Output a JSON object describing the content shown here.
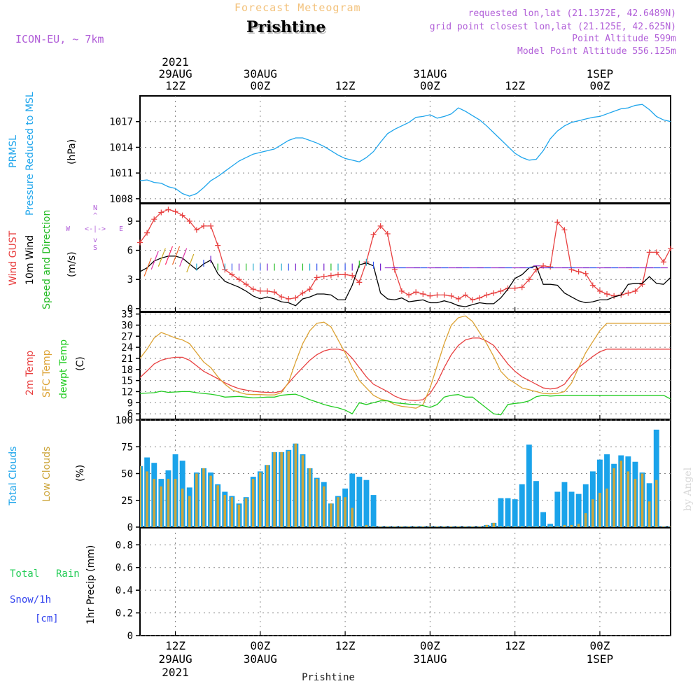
{
  "header": {
    "model": "ICON-EU, ~ 7km",
    "product": "Forecast Meteogram",
    "station": "Prishtine",
    "requested": "requested lon,lat (21.1372E, 42.6489N)",
    "grid_point": "grid point closest lon,lat (21.125E, 42.625N)",
    "point_alt": "Point Altitude 599m",
    "model_alt": "Model Point Altitude 556.125m",
    "credit": "by Angel",
    "footer_station": "Prishtine"
  },
  "colors": {
    "pressure": "#1ea5ec",
    "gust": "#e84141",
    "wind": "#000000",
    "wind_dir": "#22bb22",
    "temp": "#e84141",
    "sfc_temp": "#dca233",
    "dewpt": "#22cc22",
    "total_clouds": "#1aa3ea",
    "low_clouds": "#cda63b",
    "rain": "#22cc55",
    "snow": "#3344ee",
    "label_purple": "#b15fd8",
    "title_orange": "#f3c27c"
  },
  "top_axis": [
    {
      "t": 0,
      "lines": [
        "2021",
        "29AUG",
        "12Z"
      ]
    },
    {
      "t": 12,
      "lines": [
        "30AUG",
        "00Z"
      ]
    },
    {
      "t": 24,
      "lines": [
        "12Z"
      ]
    },
    {
      "t": 36,
      "lines": [
        "31AUG",
        "00Z"
      ]
    },
    {
      "t": 48,
      "lines": [
        "12Z"
      ]
    },
    {
      "t": 60,
      "lines": [
        "1SEP",
        "00Z"
      ]
    }
  ],
  "bottom_axis": [
    {
      "t": 0,
      "lines": [
        "12Z",
        "29AUG",
        "2021"
      ]
    },
    {
      "t": 12,
      "lines": [
        "00Z",
        "30AUG"
      ]
    },
    {
      "t": 24,
      "lines": [
        "12Z"
      ]
    },
    {
      "t": 36,
      "lines": [
        "00Z",
        "31AUG"
      ]
    },
    {
      "t": 48,
      "lines": [
        "12Z"
      ]
    },
    {
      "t": 60,
      "lines": [
        "00Z",
        "1SEP"
      ]
    }
  ],
  "panel_labels": {
    "pressure": [
      "PRMSL",
      "Pressure Reduced to MSL",
      "(hPa)"
    ],
    "wind": [
      "Wind GUST",
      "10m Wind",
      "Speed and Direction",
      "(m/s)"
    ],
    "compass": [
      "N",
      "S",
      "W",
      "E"
    ],
    "temp": [
      "2m Temp",
      "SFC Temp",
      "dewpt Temp",
      "(C)"
    ],
    "clouds": [
      "Total Clouds",
      "Low Clouds",
      "(%)"
    ],
    "precip": [
      "Total",
      "Rain",
      "Snow/1h",
      "[cm]",
      "1hr Precip (mm)"
    ]
  },
  "chart_data": [
    {
      "type": "line",
      "title": "PRMSL Pressure Reduced to MSL",
      "ylabel": "(hPa)",
      "ylim": [
        1007.5,
        1020.0
      ],
      "yticks": [
        1008,
        1011,
        1014,
        1017
      ],
      "x_hours": [
        -5,
        -4,
        -3,
        -2,
        -1,
        0,
        1,
        2,
        3,
        4,
        5,
        6,
        7,
        8,
        9,
        10,
        11,
        12,
        13,
        14,
        15,
        16,
        17,
        18,
        19,
        20,
        21,
        22,
        23,
        24,
        25,
        26,
        27,
        28,
        29,
        30,
        31,
        32,
        33,
        34,
        35,
        36,
        37,
        38,
        39,
        40,
        41,
        42,
        43,
        44,
        45,
        46,
        47,
        48,
        49,
        50,
        51,
        52,
        53,
        54,
        55,
        56,
        57,
        58,
        59,
        60,
        61,
        62,
        63,
        64,
        65,
        66,
        67,
        68,
        69,
        70
      ],
      "series": [
        {
          "values": [
            1010.1,
            1010.2,
            1009.9,
            1009.8,
            1009.4,
            1009.2,
            1008.6,
            1008.3,
            1008.6,
            1009.3,
            1010.1,
            1010.6,
            1011.2,
            1011.8,
            1012.4,
            1012.8,
            1013.2,
            1013.4,
            1013.6,
            1013.8,
            1014.3,
            1014.8,
            1015.1,
            1015.1,
            1014.8,
            1014.5,
            1014.1,
            1013.6,
            1013.1,
            1012.7,
            1012.5,
            1012.3,
            1012.8,
            1013.5,
            1014.6,
            1015.6,
            1016.1,
            1016.5,
            1016.9,
            1017.5,
            1017.6,
            1017.8,
            1017.4,
            1017.6,
            1017.9,
            1018.6,
            1018.2,
            1017.7,
            1017.2,
            1016.5,
            1015.7,
            1014.9,
            1014.1,
            1013.3,
            1012.8,
            1012.5,
            1012.6,
            1013.6,
            1015.0,
            1015.9,
            1016.5,
            1016.9,
            1017.1,
            1017.3,
            1017.5,
            1017.6,
            1017.9,
            1018.2,
            1018.5,
            1018.6,
            1018.9,
            1019.0,
            1018.4,
            1017.6,
            1017.2,
            1017.0
          ]
        }
      ]
    },
    {
      "type": "line",
      "title": "Wind GUST, 10m Wind Speed and Direction",
      "ylabel": "(m/s)",
      "ylim": [
        -0.3,
        10.8
      ],
      "yticks": [
        0,
        3,
        6,
        9
      ],
      "x_hours": [
        -5,
        -4,
        -3,
        -2,
        -1,
        0,
        1,
        2,
        3,
        4,
        5,
        6,
        7,
        8,
        9,
        10,
        11,
        12,
        13,
        14,
        15,
        16,
        17,
        18,
        19,
        20,
        21,
        22,
        23,
        24,
        25,
        26,
        27,
        28,
        29,
        30,
        31,
        32,
        33,
        34,
        35,
        36,
        37,
        38,
        39,
        40,
        41,
        42,
        43,
        44,
        45,
        46,
        47,
        48,
        49,
        50,
        51,
        52,
        53,
        54,
        55,
        56,
        57,
        58,
        59,
        60,
        61,
        62,
        63,
        64,
        65,
        66,
        67,
        68,
        69,
        70
      ],
      "series": [
        {
          "name": "Wind GUST",
          "values": [
            6.8,
            7.8,
            9.2,
            9.9,
            10.2,
            10.0,
            9.6,
            9.0,
            8.1,
            8.5,
            8.5,
            6.5,
            4.0,
            3.5,
            3.0,
            2.5,
            2.0,
            1.8,
            1.8,
            1.7,
            1.2,
            1.0,
            1.1,
            1.6,
            2.0,
            3.2,
            3.3,
            3.4,
            3.5,
            3.5,
            3.4,
            2.7,
            4.8,
            7.6,
            8.5,
            7.7,
            4.0,
            1.8,
            1.4,
            1.7,
            1.5,
            1.3,
            1.4,
            1.4,
            1.3,
            1.0,
            1.4,
            0.9,
            1.1,
            1.4,
            1.6,
            1.8,
            2.1,
            2.1,
            2.2,
            3.0,
            4.0,
            4.4,
            4.3,
            8.9,
            8.1,
            4.0,
            3.8,
            3.6,
            2.4,
            1.8,
            1.5,
            1.3,
            1.4,
            1.6,
            1.8,
            2.5,
            5.8,
            5.8,
            4.8,
            6.2
          ]
        },
        {
          "name": "10m Wind",
          "values": [
            3.8,
            4.2,
            4.9,
            5.2,
            5.4,
            5.4,
            5.2,
            4.6,
            4.0,
            4.6,
            5.0,
            3.6,
            2.8,
            2.5,
            2.2,
            1.8,
            1.3,
            1.0,
            1.2,
            1.0,
            0.7,
            0.6,
            0.3,
            1.0,
            1.2,
            1.5,
            1.5,
            1.4,
            0.9,
            0.9,
            2.4,
            4.5,
            4.7,
            4.4,
            1.6,
            1.0,
            0.9,
            1.1,
            0.7,
            0.8,
            0.9,
            0.6,
            0.6,
            0.8,
            0.6,
            0.3,
            0.2,
            0.4,
            0.6,
            0.5,
            0.5,
            1.1,
            2.0,
            3.1,
            3.5,
            4.2,
            4.4,
            2.5,
            2.5,
            2.4,
            1.6,
            1.2,
            0.8,
            0.6,
            0.7,
            0.9,
            0.9,
            1.2,
            1.4,
            2.5,
            2.6,
            2.6,
            3.3,
            2.6,
            2.5,
            3.2
          ]
        }
      ]
    },
    {
      "type": "line",
      "title": "2m Temp, SFC Temp, dewpt Temp",
      "ylabel": "(C)",
      "ylim": [
        4.5,
        33.5
      ],
      "yticks": [
        6,
        9,
        12,
        15,
        18,
        21,
        24,
        27,
        30,
        33
      ],
      "x_hours": [
        -5,
        -4,
        -3,
        -2,
        -1,
        0,
        1,
        2,
        3,
        4,
        5,
        6,
        7,
        8,
        9,
        10,
        11,
        12,
        13,
        14,
        15,
        16,
        17,
        18,
        19,
        20,
        21,
        22,
        23,
        24,
        25,
        26,
        27,
        28,
        29,
        30,
        31,
        32,
        33,
        34,
        35,
        36,
        37,
        38,
        39,
        40,
        41,
        42,
        43,
        44,
        45,
        46,
        47,
        48,
        49,
        50,
        51,
        52,
        53,
        54,
        55,
        56,
        57,
        58,
        59,
        60,
        61,
        62,
        63,
        64,
        65,
        66,
        67,
        68,
        69,
        70
      ],
      "series": [
        {
          "name": "2m Temp",
          "values": [
            15.8,
            17.6,
            19.5,
            20.5,
            21.0,
            21.3,
            21.3,
            20.5,
            19.0,
            17.5,
            16.5,
            15.5,
            14.4,
            13.5,
            12.8,
            12.4,
            12.1,
            11.9,
            11.8,
            11.7,
            12.1,
            14.3,
            16.5,
            18.5,
            20.5,
            22.0,
            23.0,
            23.5,
            23.5,
            23.0,
            21.0,
            18.5,
            16.0,
            14.0,
            13.0,
            12.0,
            10.8,
            10.0,
            9.7,
            9.6,
            9.8,
            11.5,
            14.5,
            18.5,
            22.0,
            24.5,
            26.0,
            26.5,
            26.5,
            25.7,
            24.5,
            22.0,
            19.5,
            17.5,
            16.0,
            15.0,
            14.0,
            13.0,
            12.7,
            13.0,
            14.0,
            16.5,
            18.5,
            20.0,
            21.5,
            22.8,
            23.5,
            23.5,
            23.5,
            23.5,
            23.5,
            23.5,
            23.5,
            23.5,
            23.5,
            23.5
          ]
        },
        {
          "name": "SFC Temp",
          "values": [
            21.0,
            23.5,
            26.5,
            28.0,
            27.3,
            26.5,
            26.0,
            25.0,
            22.5,
            20.0,
            18.5,
            16.0,
            14.0,
            12.5,
            11.8,
            11.3,
            11.2,
            11.2,
            11.1,
            11.1,
            11.7,
            14.5,
            20.0,
            25.0,
            28.5,
            30.5,
            30.8,
            29.5,
            26.0,
            22.5,
            18.5,
            15.0,
            13.0,
            11.0,
            10.0,
            9.5,
            8.5,
            8.0,
            7.8,
            7.5,
            8.5,
            13.0,
            19.0,
            25.0,
            30.0,
            32.0,
            32.5,
            31.0,
            28.0,
            25.0,
            21.5,
            17.5,
            15.5,
            14.3,
            13.0,
            12.5,
            12.0,
            11.5,
            11.4,
            11.5,
            12.0,
            14.3,
            18.5,
            22.5,
            25.5,
            28.5,
            30.5,
            30.5,
            30.5,
            30.5,
            30.5,
            30.5,
            30.5,
            30.5,
            30.5,
            30.5
          ]
        },
        {
          "name": "dewpt Temp",
          "values": [
            11.5,
            11.6,
            11.7,
            12.1,
            11.8,
            11.9,
            12.0,
            12.0,
            11.7,
            11.5,
            11.3,
            11.0,
            10.5,
            10.6,
            10.7,
            10.5,
            10.3,
            10.4,
            10.5,
            10.5,
            11.0,
            11.2,
            11.3,
            10.6,
            9.8,
            9.2,
            8.5,
            8.0,
            7.6,
            7.0,
            6.0,
            9.0,
            8.5,
            9.0,
            9.5,
            9.5,
            9.0,
            8.8,
            8.6,
            8.5,
            8.2,
            7.7,
            8.5,
            10.5,
            11.0,
            11.2,
            10.5,
            10.5,
            9.0,
            7.5,
            6.0,
            5.7,
            8.5,
            8.8,
            9.0,
            9.5,
            10.6,
            11.0,
            10.8,
            10.9,
            11.0,
            11.0,
            11.0,
            11.0,
            11.0,
            11.0,
            11.0,
            11.0,
            11.0,
            11.0,
            11.0,
            11.0,
            11.0,
            11.0,
            11.0,
            10.0
          ]
        }
      ]
    },
    {
      "type": "bar",
      "title": "Total Clouds, Low Clouds",
      "ylabel": "(%)",
      "ylim": [
        0,
        100
      ],
      "yticks": [
        0,
        25,
        50,
        75,
        100
      ],
      "x_hours": [
        -5,
        -4,
        -3,
        -2,
        -1,
        0,
        1,
        2,
        3,
        4,
        5,
        6,
        7,
        8,
        9,
        10,
        11,
        12,
        13,
        14,
        15,
        16,
        17,
        18,
        19,
        20,
        21,
        22,
        23,
        24,
        25,
        26,
        27,
        28,
        29,
        30,
        31,
        32,
        33,
        34,
        35,
        36,
        37,
        38,
        39,
        40,
        41,
        42,
        43,
        44,
        45,
        46,
        47,
        48,
        49,
        50,
        51,
        52,
        53,
        54,
        55,
        56,
        57,
        58,
        59,
        60,
        61,
        62,
        63,
        64,
        65,
        66,
        67,
        68,
        69,
        70
      ],
      "series": [
        {
          "name": "Total Clouds",
          "values": [
            57,
            65,
            60,
            45,
            53,
            68,
            62,
            37,
            51,
            55,
            51,
            40,
            33,
            29,
            22,
            28,
            47,
            52,
            58,
            70,
            70,
            72,
            78,
            68,
            55,
            46,
            42,
            22,
            29,
            36,
            50,
            47,
            44,
            30,
            0,
            0,
            0,
            0,
            0,
            0,
            0,
            0,
            0,
            0,
            0,
            0,
            0,
            0,
            0,
            2,
            4,
            27,
            27,
            26,
            40,
            77,
            43,
            14,
            3,
            33,
            42,
            33,
            31,
            40,
            52,
            63,
            68,
            59,
            67,
            66,
            61,
            51,
            41,
            91,
            0,
            0
          ]
        },
        {
          "name": "Low Clouds",
          "values": [
            57,
            52,
            45,
            38,
            45,
            45,
            36,
            29,
            50,
            55,
            48,
            39,
            30,
            28,
            21,
            27,
            45,
            51,
            58,
            70,
            70,
            71,
            78,
            67,
            55,
            45,
            38,
            22,
            28,
            28,
            18,
            0,
            2,
            0,
            0,
            0,
            0,
            0,
            0,
            0,
            0,
            0,
            0,
            0,
            0,
            0,
            0,
            0,
            0,
            2,
            4,
            0,
            0,
            0,
            0,
            0,
            0,
            0,
            0,
            0,
            2,
            2,
            3,
            13,
            26,
            32,
            36,
            55,
            62,
            52,
            45,
            50,
            24,
            44,
            0,
            0
          ]
        }
      ]
    },
    {
      "type": "bar",
      "title": "1hr Precip",
      "ylabel": "1hr Precip (mm)",
      "ylim": [
        0,
        0.95
      ],
      "yticks": [
        0,
        0.2,
        0.4,
        0.6,
        0.8
      ],
      "series": [
        {
          "name": "Total Rain",
          "values": []
        },
        {
          "name": "Snow/1h",
          "values": []
        }
      ]
    }
  ]
}
